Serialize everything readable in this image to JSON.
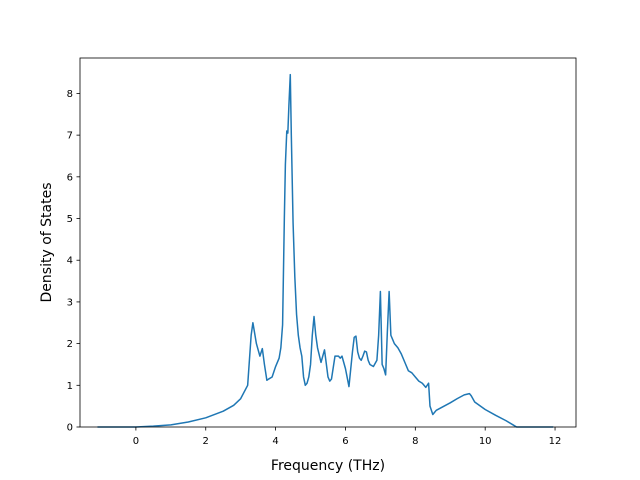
{
  "chart_data": {
    "type": "line",
    "title": "",
    "xlabel": "Frequency (THz)",
    "ylabel": "Density of States",
    "xlim": [
      -1.6,
      12.6
    ],
    "ylim": [
      0,
      8.85
    ],
    "xticks": [
      0,
      2,
      4,
      6,
      8,
      10,
      12
    ],
    "yticks": [
      0,
      1,
      2,
      3,
      4,
      5,
      6,
      7,
      8
    ],
    "xtick_labels": [
      "0",
      "2",
      "4",
      "6",
      "8",
      "10",
      "12"
    ],
    "ytick_labels": [
      "0",
      "1",
      "2",
      "3",
      "4",
      "5",
      "6",
      "7",
      "8"
    ],
    "grid": false,
    "legend": "none",
    "series": [
      {
        "color": "#1f77b4",
        "x": [
          -1.1,
          -0.5,
          0.0,
          0.5,
          1.0,
          1.5,
          2.0,
          2.5,
          2.8,
          3.0,
          3.2,
          3.3,
          3.35,
          3.45,
          3.55,
          3.62,
          3.68,
          3.75,
          3.8,
          3.9,
          4.0,
          4.1,
          4.15,
          4.2,
          4.25,
          4.28,
          4.32,
          4.35,
          4.38,
          4.42,
          4.45,
          4.5,
          4.55,
          4.6,
          4.65,
          4.7,
          4.75,
          4.8,
          4.85,
          4.9,
          4.95,
          5.0,
          5.05,
          5.1,
          5.15,
          5.2,
          5.3,
          5.4,
          5.5,
          5.55,
          5.6,
          5.7,
          5.8,
          5.85,
          5.9,
          6.0,
          6.1,
          6.2,
          6.25,
          6.3,
          6.35,
          6.4,
          6.45,
          6.5,
          6.55,
          6.6,
          6.65,
          6.7,
          6.8,
          6.9,
          6.95,
          7.0,
          7.05,
          7.1,
          7.15,
          7.2,
          7.25,
          7.3,
          7.35,
          7.4,
          7.5,
          7.6,
          7.7,
          7.8,
          7.9,
          8.0,
          8.1,
          8.2,
          8.3,
          8.38,
          8.42,
          8.5,
          8.55,
          8.6,
          9.0,
          9.2,
          9.4,
          9.55,
          9.6,
          9.7,
          10.0,
          10.3,
          10.6,
          10.8,
          10.9,
          11.0,
          11.5,
          11.95
        ],
        "y": [
          0,
          0,
          0,
          0.02,
          0.05,
          0.12,
          0.22,
          0.38,
          0.52,
          0.68,
          1.0,
          2.2,
          2.5,
          2.0,
          1.7,
          1.88,
          1.5,
          1.12,
          1.15,
          1.2,
          1.45,
          1.65,
          1.9,
          2.45,
          5.0,
          6.3,
          7.1,
          7.05,
          7.7,
          8.45,
          7.0,
          4.9,
          3.6,
          2.7,
          2.2,
          1.9,
          1.7,
          1.2,
          1.0,
          1.05,
          1.2,
          1.5,
          2.2,
          2.65,
          2.2,
          1.9,
          1.55,
          1.85,
          1.2,
          1.1,
          1.15,
          1.7,
          1.7,
          1.65,
          1.7,
          1.4,
          0.97,
          1.8,
          2.15,
          2.18,
          1.8,
          1.65,
          1.6,
          1.7,
          1.82,
          1.8,
          1.6,
          1.5,
          1.45,
          1.6,
          2.2,
          3.25,
          1.5,
          1.4,
          1.25,
          2.3,
          3.25,
          2.2,
          2.1,
          2.0,
          1.9,
          1.75,
          1.55,
          1.35,
          1.3,
          1.2,
          1.1,
          1.05,
          0.95,
          1.05,
          0.5,
          0.3,
          0.35,
          0.4,
          0.58,
          0.68,
          0.77,
          0.8,
          0.75,
          0.6,
          0.42,
          0.28,
          0.15,
          0.05,
          0.0,
          0,
          0,
          0
        ]
      }
    ]
  }
}
